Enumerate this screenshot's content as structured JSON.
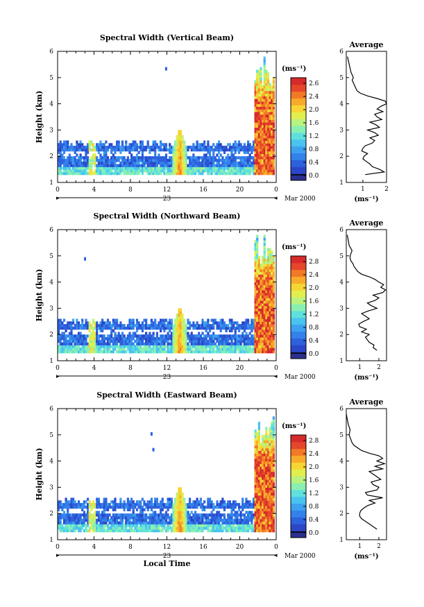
{
  "figure": {
    "xlabel": "Local Time",
    "date_label": "Mar 2000",
    "day_label": "23",
    "avg_title": "Average",
    "avg_xlabel": "(ms⁻¹)",
    "colorbar_unit": "(ms⁻¹)",
    "ylabel": "Height (km)"
  },
  "colors": {
    "colormap": [
      "#2b2f8f",
      "#2b46c7",
      "#2d61dd",
      "#3481ea",
      "#3da1f0",
      "#49c3ef",
      "#5fe0dc",
      "#89f0b1",
      "#b9f27f",
      "#e2ee4e",
      "#f6d534",
      "#f8ab2a",
      "#f27a26",
      "#e6462a",
      "#d72a2a"
    ]
  },
  "colorbar_ticks": [
    "2.8",
    "2.4",
    "2.0",
    "1.6",
    "1.2",
    "0.8",
    "0.4",
    "0.0"
  ],
  "colorbar_ticks_1": [
    "2.6",
    "2.4",
    "2.0",
    "1.6",
    "1.2",
    "0.8",
    "0.4",
    "0.0"
  ],
  "chart_data": [
    {
      "type": "heatmap",
      "title": "Spectral Width (Vertical Beam)",
      "ylabel": "Height (km)",
      "xlabel": "",
      "x_ticks": [
        "0",
        "4",
        "8",
        "12",
        "16",
        "20",
        "0"
      ],
      "y_ticks": [
        "1",
        "2",
        "3",
        "4",
        "5",
        "6"
      ],
      "xlim": [
        0,
        24
      ],
      "ylim": [
        1,
        6
      ],
      "colorbar": {
        "min": 0.0,
        "max": 2.8,
        "unit": "(ms⁻¹)"
      },
      "average_profile": {
        "title": "Average",
        "xlabel": "(ms⁻¹)",
        "x_ticks": [
          "1",
          "2"
        ],
        "xlim": [
          0.3,
          2.0
        ],
        "height_km": [
          1.3,
          1.4,
          1.5,
          1.6,
          1.7,
          1.8,
          1.9,
          2.0,
          2.1,
          2.2,
          2.3,
          2.4,
          2.5,
          2.6,
          2.7,
          2.8,
          2.9,
          3.0,
          3.1,
          3.2,
          3.3,
          3.4,
          3.5,
          3.6,
          3.7,
          3.8,
          3.9,
          4.0,
          4.1,
          4.2,
          4.3,
          4.4,
          4.5,
          4.6,
          4.7,
          4.8,
          4.9,
          5.0,
          5.2,
          5.4,
          5.6,
          5.8
        ],
        "value": [
          1.1,
          1.9,
          1.7,
          1.4,
          1.3,
          1.15,
          1.0,
          1.05,
          1.2,
          0.95,
          1.0,
          1.1,
          1.4,
          1.5,
          1.3,
          1.65,
          1.5,
          1.2,
          1.7,
          1.55,
          1.3,
          1.8,
          1.6,
          1.5,
          1.85,
          1.6,
          1.75,
          2.0,
          1.95,
          1.6,
          1.2,
          0.9,
          0.75,
          0.7,
          0.65,
          0.6,
          0.55,
          0.6,
          0.5,
          0.45,
          0.4,
          0.35
        ]
      }
    },
    {
      "type": "heatmap",
      "title": "Spectral Width (Northward Beam)",
      "ylabel": "Height (km)",
      "xlabel": "",
      "x_ticks": [
        "0",
        "4",
        "8",
        "12",
        "16",
        "20",
        "0"
      ],
      "y_ticks": [
        "1",
        "2",
        "3",
        "4",
        "5",
        "6"
      ],
      "xlim": [
        0,
        24
      ],
      "ylim": [
        1,
        6
      ],
      "colorbar": {
        "min": 0.0,
        "max": 2.8,
        "unit": "(ms⁻¹)"
      },
      "average_profile": {
        "title": "Average",
        "xlabel": "(ms⁻¹)",
        "x_ticks": [
          "1",
          "2"
        ],
        "xlim": [
          0.3,
          2.4
        ],
        "height_km": [
          1.4,
          1.5,
          1.6,
          1.7,
          1.8,
          1.9,
          2.0,
          2.1,
          2.2,
          2.3,
          2.4,
          2.5,
          2.6,
          2.7,
          2.8,
          2.9,
          3.0,
          3.1,
          3.2,
          3.3,
          3.4,
          3.5,
          3.6,
          3.7,
          3.8,
          3.9,
          4.0,
          4.1,
          4.2,
          4.3,
          4.4,
          4.5,
          4.6,
          4.7,
          4.8,
          4.9,
          5.0,
          5.2,
          5.4,
          5.6,
          5.8
        ],
        "value": [
          1.9,
          1.7,
          1.75,
          1.5,
          1.4,
          1.3,
          1.5,
          1.1,
          1.35,
          1.0,
          0.95,
          1.2,
          1.5,
          1.3,
          1.1,
          1.45,
          1.9,
          1.6,
          1.4,
          1.8,
          2.0,
          1.7,
          2.2,
          2.35,
          2.1,
          2.25,
          2.0,
          1.8,
          1.5,
          1.1,
          0.9,
          0.8,
          0.7,
          0.65,
          0.55,
          0.5,
          0.5,
          0.6,
          0.45,
          0.4,
          0.35
        ]
      }
    },
    {
      "type": "heatmap",
      "title": "Spectral Width (Eastward Beam)",
      "ylabel": "Height (km)",
      "xlabel": "Local Time",
      "x_ticks": [
        "0",
        "4",
        "8",
        "12",
        "16",
        "20",
        "0"
      ],
      "y_ticks": [
        "1",
        "2",
        "3",
        "4",
        "5",
        "6"
      ],
      "xlim": [
        0,
        24
      ],
      "ylim": [
        1,
        6
      ],
      "colorbar": {
        "min": 0.0,
        "max": 2.8,
        "unit": "(ms⁻¹)"
      },
      "average_profile": {
        "title": "Average",
        "xlabel": "(ms⁻¹)",
        "x_ticks": [
          "1",
          "2"
        ],
        "xlim": [
          0.3,
          2.4
        ],
        "height_km": [
          1.4,
          1.5,
          1.6,
          1.7,
          1.8,
          1.9,
          2.0,
          2.1,
          2.2,
          2.3,
          2.4,
          2.5,
          2.6,
          2.7,
          2.8,
          2.9,
          3.0,
          3.1,
          3.2,
          3.3,
          3.4,
          3.5,
          3.6,
          3.7,
          3.8,
          3.9,
          4.0,
          4.1,
          4.2,
          4.3,
          4.4,
          4.5,
          4.6,
          4.7,
          4.8,
          4.9,
          5.0,
          5.2,
          5.4,
          5.6,
          5.8
        ],
        "value": [
          1.9,
          1.7,
          1.5,
          1.3,
          1.1,
          1.0,
          1.0,
          1.05,
          1.2,
          1.4,
          1.8,
          1.5,
          2.2,
          1.4,
          1.3,
          1.9,
          2.0,
          1.7,
          1.6,
          2.1,
          1.9,
          1.7,
          1.5,
          2.2,
          1.8,
          2.3,
          1.9,
          2.2,
          2.0,
          1.5,
          1.1,
          0.9,
          0.7,
          0.6,
          0.55,
          0.5,
          0.45,
          0.5,
          0.4,
          0.35,
          0.3
        ]
      }
    }
  ]
}
